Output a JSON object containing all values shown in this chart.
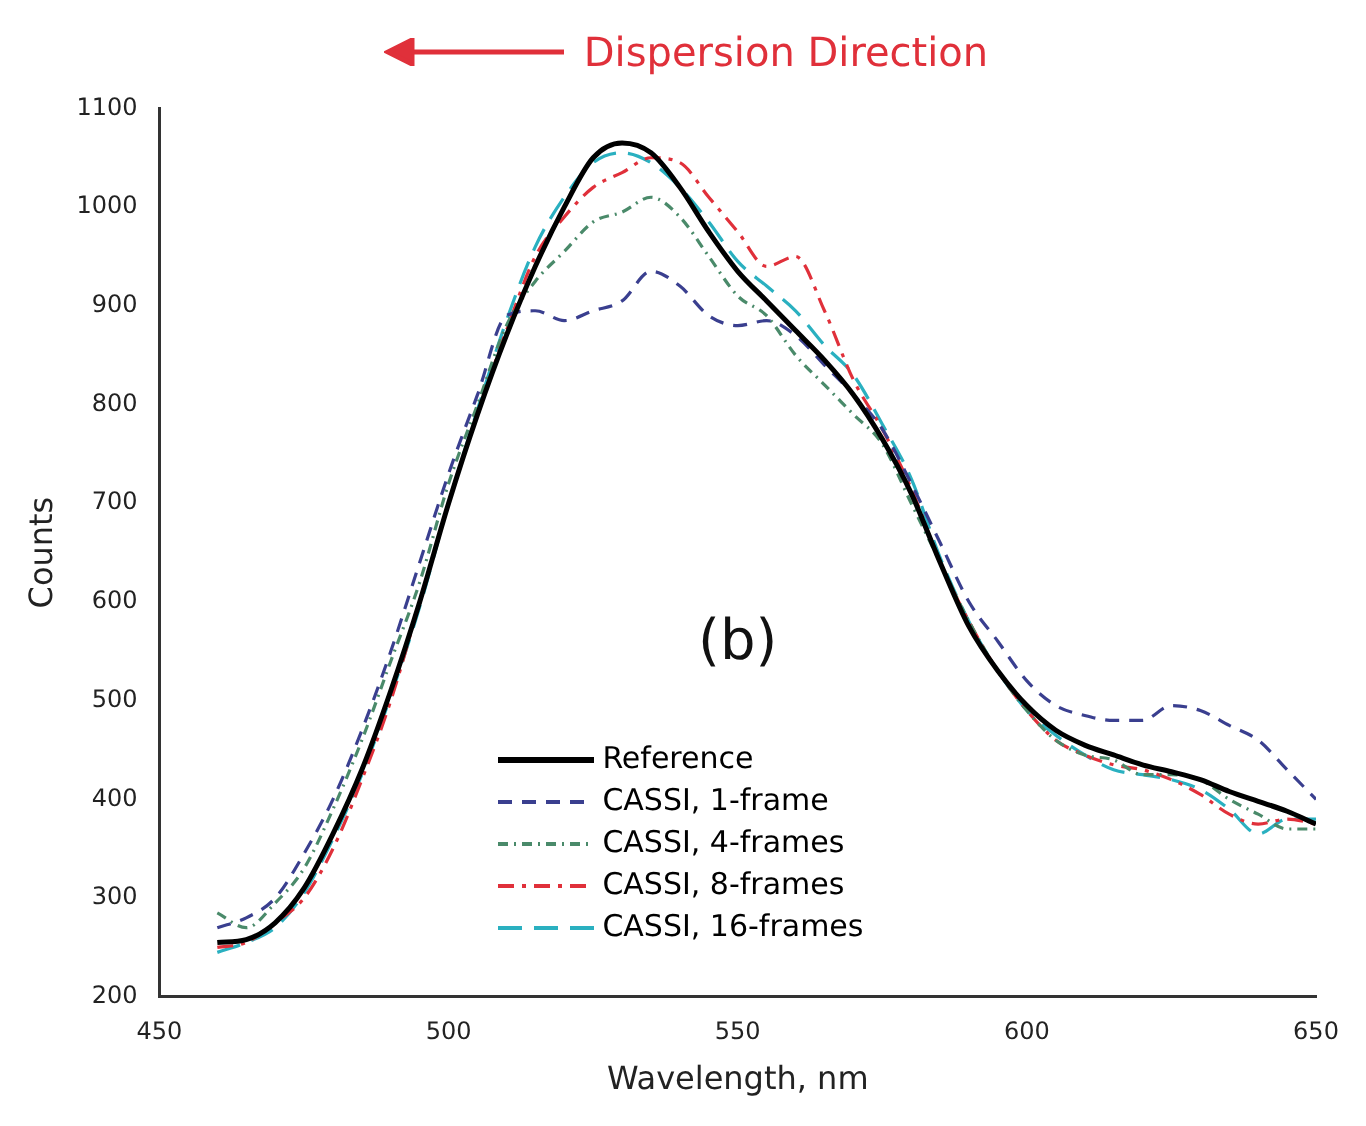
{
  "chart_data": {
    "type": "line",
    "xlabel": "Wavelength, nm",
    "ylabel": "Counts",
    "annotations": [
      "Dispersion Direction",
      "(b)"
    ],
    "x": [
      460,
      465,
      470,
      475,
      480,
      485,
      490,
      495,
      500,
      505,
      510,
      515,
      520,
      525,
      530,
      535,
      540,
      545,
      550,
      555,
      560,
      565,
      570,
      575,
      580,
      585,
      590,
      595,
      600,
      605,
      610,
      615,
      620,
      625,
      630,
      635,
      640,
      645,
      650
    ],
    "xlim": [
      450,
      650
    ],
    "xticks": [
      450,
      500,
      550,
      600,
      650
    ],
    "ylim": [
      200,
      1100
    ],
    "yticks": [
      200,
      300,
      400,
      500,
      600,
      700,
      800,
      900,
      1000,
      1100
    ],
    "grid": false,
    "legend": "bottom",
    "marker": "none",
    "series": [
      {
        "name": "Reference",
        "color": "#000000",
        "line_style": "solid",
        "values": [
          255,
          258,
          275,
          310,
          365,
          430,
          510,
          600,
          700,
          790,
          870,
          940,
          1000,
          1050,
          1065,
          1055,
          1020,
          975,
          935,
          905,
          875,
          845,
          810,
          765,
          710,
          640,
          575,
          530,
          495,
          470,
          455,
          445,
          435,
          428,
          420,
          408,
          398,
          388,
          375
        ]
      },
      {
        "name": "CASSI, 1-frame",
        "color": "#3a3f8f",
        "line_style": "dashed",
        "values": [
          270,
          280,
          300,
          345,
          400,
          470,
          550,
          640,
          730,
          810,
          890,
          895,
          885,
          895,
          905,
          935,
          920,
          890,
          880,
          885,
          870,
          840,
          810,
          775,
          720,
          660,
          600,
          560,
          520,
          495,
          485,
          480,
          480,
          495,
          490,
          475,
          460,
          430,
          400
        ]
      },
      {
        "name": "CASSI, 4-frames",
        "color": "#4a8a6a",
        "line_style": "dashed",
        "values": [
          285,
          270,
          295,
          330,
          390,
          460,
          540,
          620,
          720,
          800,
          880,
          925,
          955,
          985,
          995,
          1010,
          990,
          950,
          910,
          890,
          850,
          820,
          790,
          760,
          700,
          640,
          580,
          530,
          490,
          460,
          445,
          440,
          425,
          425,
          420,
          400,
          385,
          370,
          370
        ]
      },
      {
        "name": "CASSI, 8-frames",
        "color": "#e0303a",
        "line_style": "dashed",
        "values": [
          250,
          255,
          275,
          300,
          350,
          420,
          500,
          600,
          700,
          790,
          875,
          950,
          990,
          1020,
          1035,
          1050,
          1045,
          1010,
          975,
          940,
          950,
          895,
          825,
          775,
          715,
          640,
          580,
          530,
          490,
          460,
          445,
          435,
          430,
          420,
          405,
          385,
          375,
          380,
          375
        ]
      },
      {
        "name": "CASSI, 16-frames",
        "color": "#2ab0c0",
        "line_style": "dashed",
        "values": [
          245,
          255,
          270,
          305,
          360,
          425,
          505,
          595,
          700,
          795,
          885,
          960,
          1010,
          1045,
          1055,
          1045,
          1020,
          985,
          945,
          920,
          895,
          860,
          830,
          780,
          725,
          645,
          580,
          530,
          490,
          465,
          445,
          430,
          425,
          420,
          410,
          390,
          365,
          380,
          380
        ]
      }
    ]
  }
}
